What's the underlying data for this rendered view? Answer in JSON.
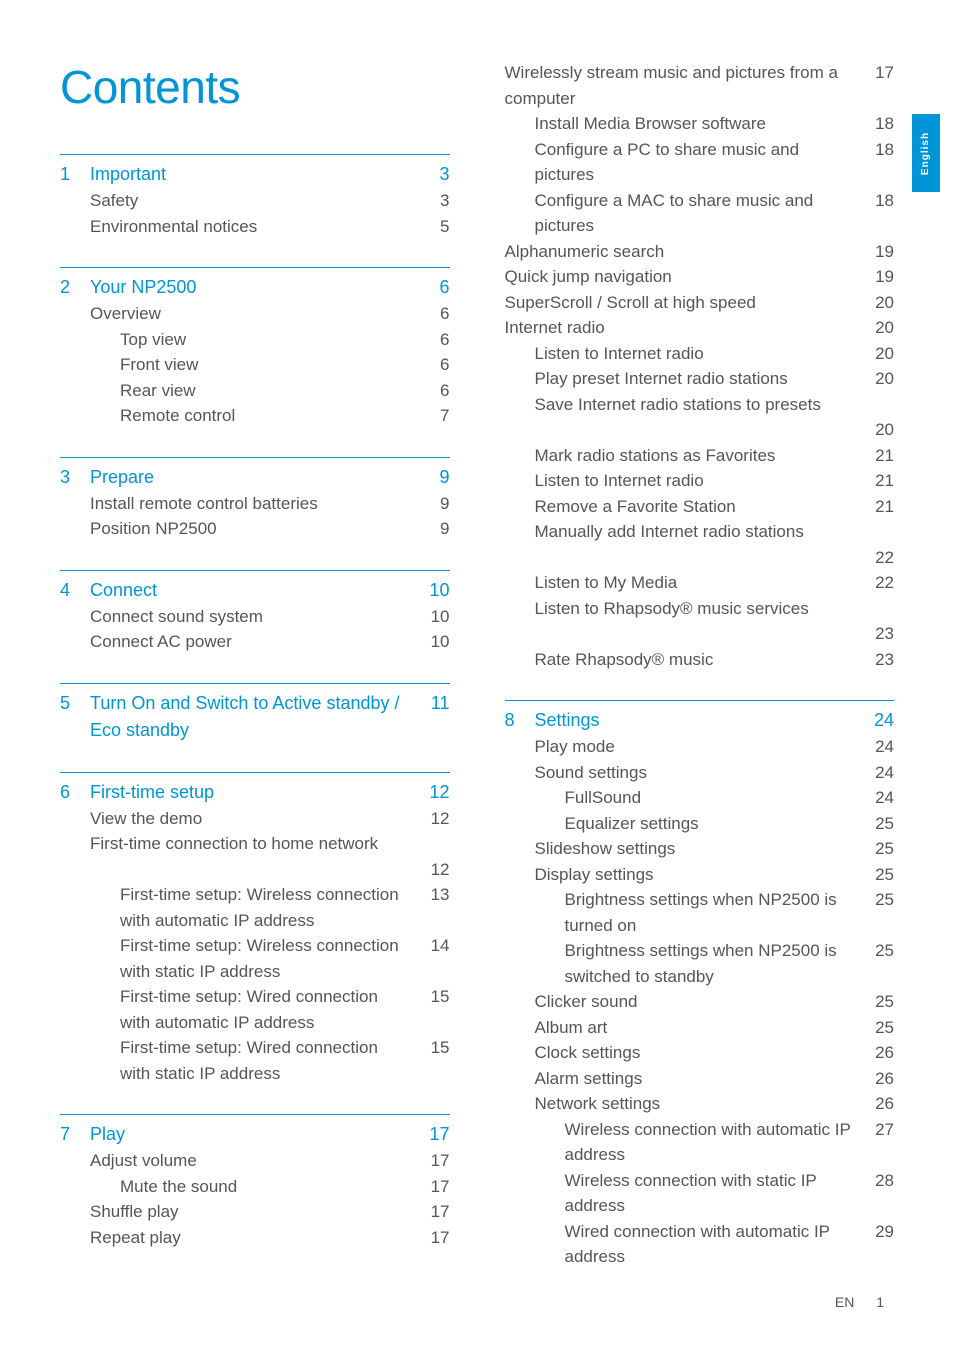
{
  "title": "Contents",
  "side_tab": "English",
  "footer": {
    "lang": "EN",
    "page": "1"
  },
  "sections_left": [
    {
      "num": "1",
      "heading": "Important",
      "heading_page": "3",
      "items": [
        {
          "label": "Safety",
          "page": "3",
          "indent": 1
        },
        {
          "label": "Environmental notices",
          "page": "5",
          "indent": 1
        }
      ]
    },
    {
      "num": "2",
      "heading": "Your NP2500",
      "heading_page": "6",
      "items": [
        {
          "label": "Overview",
          "page": "6",
          "indent": 1
        },
        {
          "label": "Top view",
          "page": "6",
          "indent": 2
        },
        {
          "label": "Front view",
          "page": "6",
          "indent": 2
        },
        {
          "label": "Rear view",
          "page": "6",
          "indent": 2
        },
        {
          "label": "Remote control",
          "page": "7",
          "indent": 2
        }
      ]
    },
    {
      "num": "3",
      "heading": "Prepare",
      "heading_page": "9",
      "items": [
        {
          "label": "Install remote control batteries",
          "page": "9",
          "indent": 1
        },
        {
          "label": "Position NP2500",
          "page": "9",
          "indent": 1
        }
      ]
    },
    {
      "num": "4",
      "heading": "Connect",
      "heading_page": "10",
      "items": [
        {
          "label": "Connect sound system",
          "page": "10",
          "indent": 1
        },
        {
          "label": "Connect AC power",
          "page": "10",
          "indent": 1
        }
      ]
    },
    {
      "num": "5",
      "heading": "Turn On and Switch to Active standby / Eco standby",
      "heading_page": "11",
      "items": []
    },
    {
      "num": "6",
      "heading": "First-time setup",
      "heading_page": "12",
      "items": [
        {
          "label": "View the demo",
          "page": "12",
          "indent": 1
        },
        {
          "label": "First-time connection to home network",
          "page": "12",
          "indent": 1,
          "wrap": true
        },
        {
          "label": "First-time setup: Wireless connection with automatic IP address",
          "page": "13",
          "indent": 2
        },
        {
          "label": "First-time setup: Wireless connection with static IP address",
          "page": "14",
          "indent": 2
        },
        {
          "label": "First-time setup: Wired connection with automatic IP address",
          "page": "15",
          "indent": 2
        },
        {
          "label": "First-time setup: Wired connection with static IP address",
          "page": "15",
          "indent": 2
        }
      ]
    },
    {
      "num": "7",
      "heading": "Play",
      "heading_page": "17",
      "items": [
        {
          "label": "Adjust volume",
          "page": "17",
          "indent": 1
        },
        {
          "label": "Mute the sound",
          "page": "17",
          "indent": 2
        },
        {
          "label": "Shuffle play",
          "page": "17",
          "indent": 1
        },
        {
          "label": "Repeat play",
          "page": "17",
          "indent": 1
        }
      ]
    }
  ],
  "sections_right_pre": [
    {
      "label": "Wirelessly stream music and pictures from a computer",
      "page": "17",
      "indent": 1
    },
    {
      "label": "Install Media Browser software",
      "page": "18",
      "indent": 2
    },
    {
      "label": "Configure a PC to share music and pictures",
      "page": "18",
      "indent": 2
    },
    {
      "label": "Configure a MAC to share music and pictures",
      "page": "18",
      "indent": 2
    },
    {
      "label": "Alphanumeric search",
      "page": "19",
      "indent": 1
    },
    {
      "label": "Quick jump navigation",
      "page": "19",
      "indent": 1
    },
    {
      "label": "SuperScroll / Scroll at high speed",
      "page": "20",
      "indent": 1
    },
    {
      "label": "Internet radio",
      "page": "20",
      "indent": 1
    },
    {
      "label": "Listen to Internet radio",
      "page": "20",
      "indent": 2
    },
    {
      "label": "Play preset Internet radio stations",
      "page": "20",
      "indent": 2
    },
    {
      "label": "Save Internet radio stations to presets",
      "page": "20",
      "indent": 2,
      "wrap": true
    },
    {
      "label": "Mark radio stations as Favorites",
      "page": "21",
      "indent": 2
    },
    {
      "label": "Listen to Internet radio",
      "page": "21",
      "indent": 2
    },
    {
      "label": "Remove a Favorite Station",
      "page": "21",
      "indent": 2
    },
    {
      "label": "Manually add Internet radio stations",
      "page": "22",
      "indent": 2,
      "wrap": true
    },
    {
      "label": "Listen to My Media",
      "page": "22",
      "indent": 2
    },
    {
      "label": "Listen to Rhapsody® music services",
      "page": "23",
      "indent": 2,
      "wrap": true
    },
    {
      "label": "Rate Rhapsody® music",
      "page": "23",
      "indent": 2
    }
  ],
  "sections_right": [
    {
      "num": "8",
      "heading": "Settings",
      "heading_page": "24",
      "items": [
        {
          "label": "Play mode",
          "page": "24",
          "indent": 1
        },
        {
          "label": "Sound settings",
          "page": "24",
          "indent": 1
        },
        {
          "label": "FullSound",
          "page": "24",
          "indent": 2
        },
        {
          "label": "Equalizer settings",
          "page": "25",
          "indent": 2
        },
        {
          "label": "Slideshow settings",
          "page": "25",
          "indent": 1
        },
        {
          "label": "Display settings",
          "page": "25",
          "indent": 1
        },
        {
          "label": "Brightness settings when NP2500 is turned on",
          "page": "25",
          "indent": 2
        },
        {
          "label": "Brightness settings when NP2500 is switched to standby",
          "page": "25",
          "indent": 2
        },
        {
          "label": "Clicker sound",
          "page": "25",
          "indent": 1
        },
        {
          "label": "Album art",
          "page": "25",
          "indent": 1
        },
        {
          "label": "Clock settings",
          "page": "26",
          "indent": 1
        },
        {
          "label": "Alarm settings",
          "page": "26",
          "indent": 1
        },
        {
          "label": "Network settings",
          "page": "26",
          "indent": 1
        },
        {
          "label": "Wireless connection with automatic IP address",
          "page": "27",
          "indent": 2
        },
        {
          "label": "Wireless connection with static IP address",
          "page": "28",
          "indent": 2
        },
        {
          "label": "Wired connection with automatic IP address",
          "page": "29",
          "indent": 2
        }
      ]
    }
  ]
}
